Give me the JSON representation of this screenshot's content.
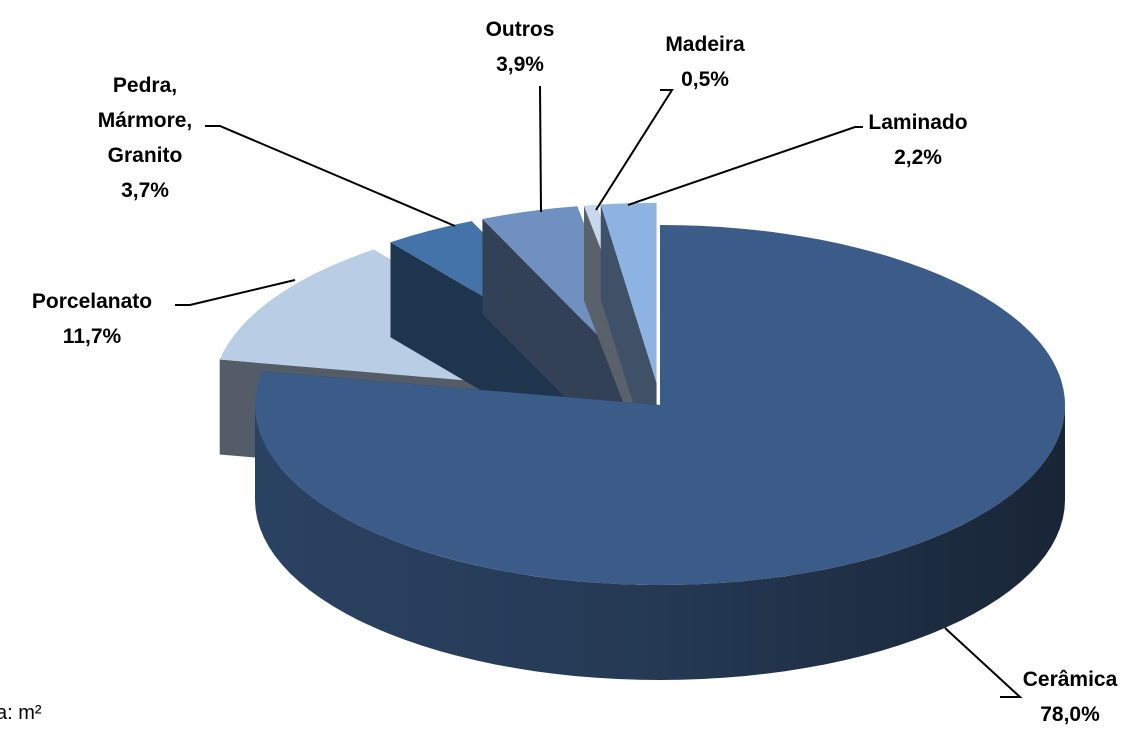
{
  "chart_data": {
    "type": "pie",
    "categories": [
      "Cerâmica",
      "Porcelanato",
      "Pedra, Mármore, Granito",
      "Outros",
      "Madeira",
      "Laminado"
    ],
    "values": [
      78.0,
      11.7,
      3.7,
      3.9,
      0.5,
      2.2
    ],
    "value_labels": [
      "78,0%",
      "11,7%",
      "3,7%",
      "3,9%",
      "0,5%",
      "2,2%"
    ],
    "colors": [
      "#3b5c88",
      "#b9cde5",
      "#4473aa",
      "#7190c2",
      "#c8d8ec",
      "#8db3e2"
    ],
    "note": "a: m²"
  }
}
